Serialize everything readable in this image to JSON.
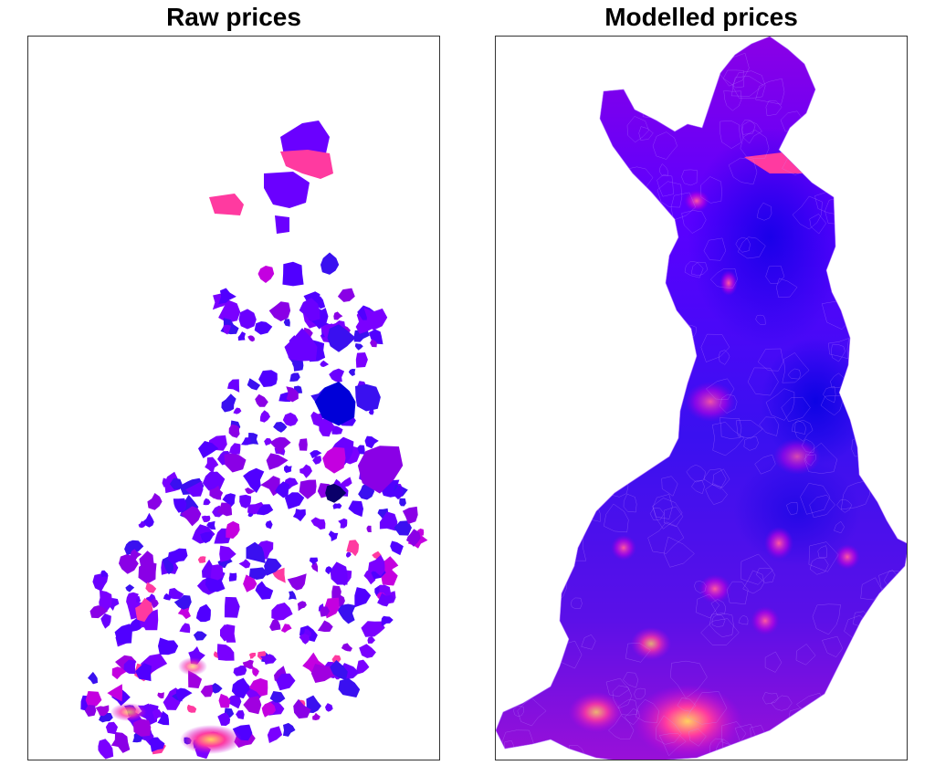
{
  "figure": {
    "panels": [
      {
        "title": "Raw prices"
      },
      {
        "title": "Modelled prices"
      }
    ]
  },
  "colors": {
    "low": "#0000e0",
    "mid": "#7a00ff",
    "high_mid": "#c400e0",
    "high": "#ff3aa0",
    "top": "#ffd060",
    "frame": "#333333"
  }
}
